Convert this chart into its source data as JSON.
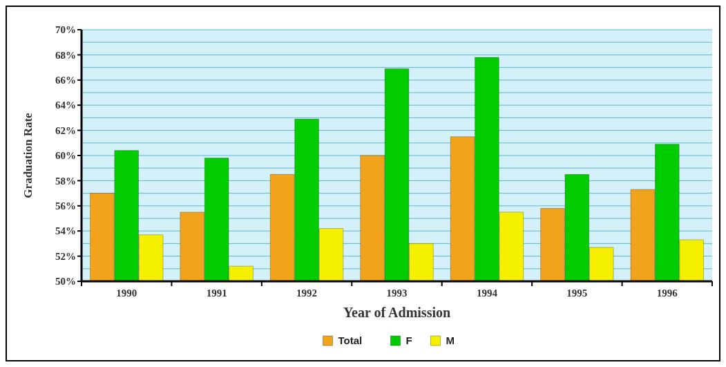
{
  "chart_data": {
    "type": "bar",
    "xlabel": "Year of Admission",
    "ylabel": "Graduation Rate",
    "categories": [
      "1990",
      "1991",
      "1992",
      "1993",
      "1994",
      "1995",
      "1996"
    ],
    "series": [
      {
        "name": "Total",
        "color": "#f2a31c",
        "values": [
          57.0,
          55.5,
          58.5,
          60.0,
          61.5,
          55.8,
          57.3
        ]
      },
      {
        "name": "F",
        "color": "#00cc00",
        "values": [
          60.4,
          59.8,
          62.9,
          66.9,
          67.8,
          58.5,
          60.9
        ]
      },
      {
        "name": "M",
        "color": "#f5f000",
        "values": [
          53.7,
          51.2,
          54.2,
          53.0,
          55.5,
          52.7,
          53.3
        ]
      }
    ],
    "ylim": [
      50,
      70
    ],
    "yticks": [
      {
        "value": 50,
        "label": "50%"
      },
      {
        "value": 51,
        "label": null
      },
      {
        "value": 52,
        "label": "52%"
      },
      {
        "value": 53,
        "label": null
      },
      {
        "value": 54,
        "label": "54%"
      },
      {
        "value": 55,
        "label": null
      },
      {
        "value": 56,
        "label": "56%"
      },
      {
        "value": 57,
        "label": null
      },
      {
        "value": 58,
        "label": "58%"
      },
      {
        "value": 59,
        "label": null
      },
      {
        "value": 60,
        "label": "60%"
      },
      {
        "value": 61,
        "label": null
      },
      {
        "value": 62,
        "label": "62%"
      },
      {
        "value": 63,
        "label": null
      },
      {
        "value": 64,
        "label": "64%"
      },
      {
        "value": 65,
        "label": null
      },
      {
        "value": 66,
        "label": "66%"
      },
      {
        "value": 67,
        "label": null
      },
      {
        "value": 68,
        "label": "68%"
      },
      {
        "value": 69,
        "label": null
      },
      {
        "value": 70,
        "label": "70%"
      }
    ],
    "grid": "y",
    "legend": "bottom"
  }
}
